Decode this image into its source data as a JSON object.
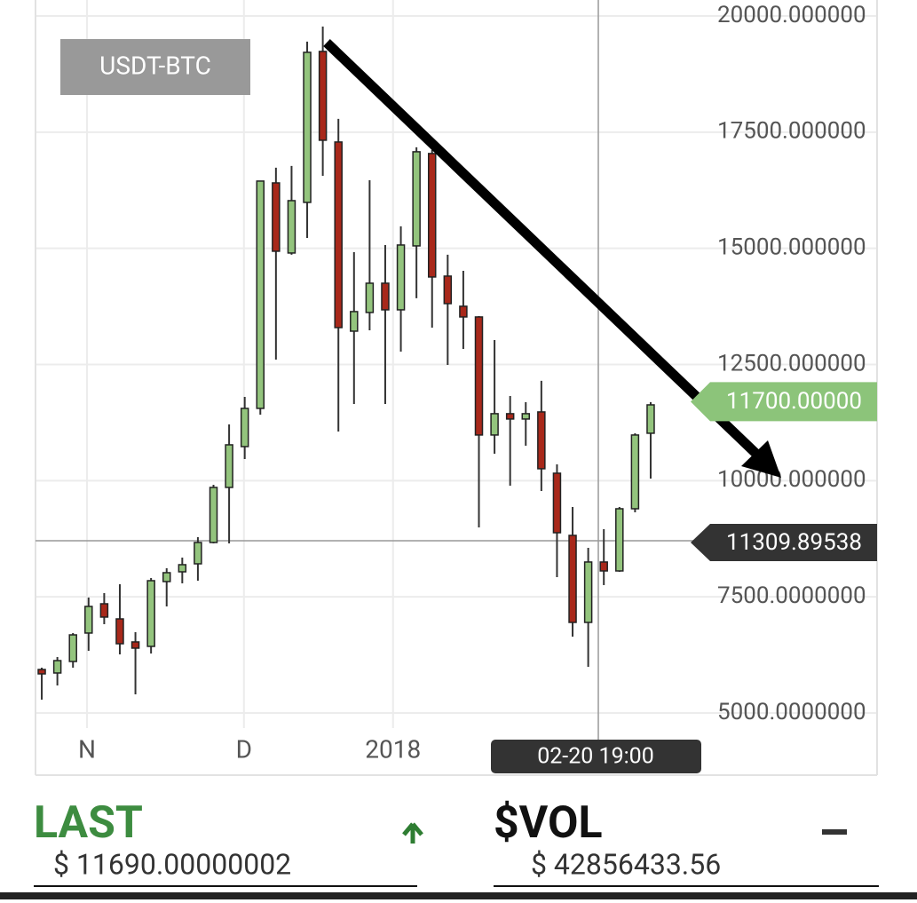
{
  "chart_data": {
    "type": "candlestick",
    "title": "USDT-BTC",
    "open": [
      5936,
      5860,
      6108,
      6720,
      7350,
      7025,
      6529,
      6433,
      7828,
      8038,
      8210,
      8669,
      9854,
      10733,
      11555,
      16408,
      14899,
      15988,
      19237,
      17288,
      13217,
      13619,
      14249,
      13676,
      15052,
      17040,
      14402,
      13753,
      13523,
      10982,
      11441,
      11326,
      11479,
      10160,
      8822,
      6949,
      8249,
      8057,
      9395,
      11020
    ],
    "high": [
      5975,
      6204,
      6720,
      7484,
      7580,
      7771,
      6739,
      7905,
      8115,
      8344,
      8784,
      9911,
      11211,
      11803,
      16447,
      16734,
      16772,
      19448,
      19772,
      17785,
      14918,
      16466,
      15071,
      15473,
      17174,
      17116,
      14861,
      14517,
      13542,
      13026,
      11822,
      11689,
      12148,
      10351,
      9434,
      8554,
      8956,
      9434,
      11020,
      11689
    ],
    "low": [
      5287,
      5592,
      5975,
      6338,
      6911,
      6261,
      5401,
      6280,
      7293,
      7790,
      7847,
      8650,
      8650,
      10465,
      11421,
      12606,
      14861,
      15224,
      16561,
      11058,
      11650,
      13236,
      11650,
      12778,
      13925,
      13294,
      12491,
      12835,
      8994,
      10580,
      9892,
      10752,
      9777,
      7924,
      6643,
      5994,
      7752,
      8038,
      9319,
      10045
    ],
    "close": [
      5841,
      6127,
      6681,
      7293,
      7064,
      6490,
      6395,
      7847,
      8019,
      8191,
      8669,
      9854,
      10771,
      11555,
      16447,
      14937,
      16026,
      19218,
      17326,
      13294,
      13638,
      14249,
      13676,
      15071,
      17078,
      14383,
      13810,
      13523,
      10982,
      11441,
      11326,
      11441,
      10256,
      8879,
      6949,
      8249,
      8057,
      9395,
      10982,
      11631
    ],
    "up_color": "#93c47d",
    "down_color": "#a8281a",
    "xlim": [
      -0.4,
      53.5
    ],
    "xticks": [
      {
        "value": 2.9,
        "label": "N"
      },
      {
        "value": 12.95,
        "label": "D"
      },
      {
        "value": 22.5,
        "label": "2018"
      }
    ],
    "ylim": [
      3662,
      20344
    ],
    "yticks": [
      {
        "value": 5000,
        "label": "5000.0000000"
      },
      {
        "value": 7500,
        "label": "7500.0000000"
      },
      {
        "value": 10000,
        "label": "10000.000000"
      },
      {
        "value": 12500,
        "label": "12500.000000"
      },
      {
        "value": 15000,
        "label": "15000.000000"
      },
      {
        "value": 17500,
        "label": "17500.000000"
      },
      {
        "value": 20000,
        "label": "20000.000000"
      }
    ],
    "grid": true,
    "last_price": {
      "value": 11700,
      "label": "11700.00000"
    },
    "crosshair_price": "11309.89538",
    "crosshair_time": "02-20 19:00"
  },
  "footer": {
    "last_label": "LAST",
    "last_value": "$ 11690.00000002",
    "vol_label": "$VOL",
    "vol_value": "$ 42856433.56"
  }
}
